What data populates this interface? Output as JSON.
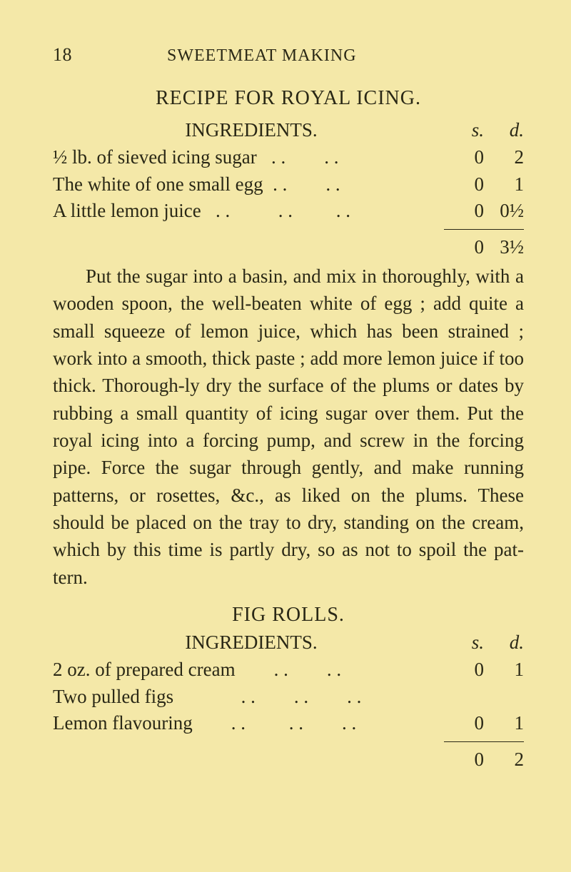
{
  "page_number": "18",
  "running_head": "SWEETMEAT MAKING",
  "recipe1": {
    "title": "RECIPE FOR ROYAL ICING.",
    "subhead": "INGREDIENTS.",
    "sd_head": {
      "s": "s.",
      "d": "d."
    },
    "rows": [
      {
        "label": "½ lb. of sieved icing sugar   . .        . .",
        "s": "0",
        "d": "2"
      },
      {
        "label": "The white of one small egg  . .        . .",
        "s": "0",
        "d": "1"
      },
      {
        "label": "A little lemon juice   . .          . .         . .",
        "s": "0",
        "d": "0½"
      }
    ],
    "total": {
      "s": "0",
      "d": "3½"
    },
    "body": "Put the sugar into a basin, and mix in thoroughly, with a wooden spoon, the well-beaten white of egg ; add quite a small squeeze of lemon juice, which has been strained ; work into a smooth, thick paste ; add more lemon juice if too thick.  Thorough-ly dry the surface of the plums or dates by rubbing a small quantity of icing sugar over them.  Put the royal icing into a forcing pump, and screw in the forcing pipe.  Force the sugar through gently, and make running patterns, or rosettes, &c., as liked on the plums.  These should be placed on the tray to dry, standing on the cream, which by this time is partly dry, so as not to spoil the pat-tern."
  },
  "recipe2": {
    "title": "FIG ROLLS.",
    "subhead": "INGREDIENTS.",
    "sd_head": {
      "s": "s.",
      "d": "d."
    },
    "rows": [
      {
        "label": "2 oz. of prepared cream        . .        . .",
        "s": "0",
        "d": "1"
      },
      {
        "label": "Two pulled figs              . .        . .        . .",
        "s": "",
        "d": ""
      },
      {
        "label": "Lemon flavouring        . .         . .        . .",
        "s": "0",
        "d": "1"
      }
    ],
    "total": {
      "s": "0",
      "d": "2"
    }
  }
}
